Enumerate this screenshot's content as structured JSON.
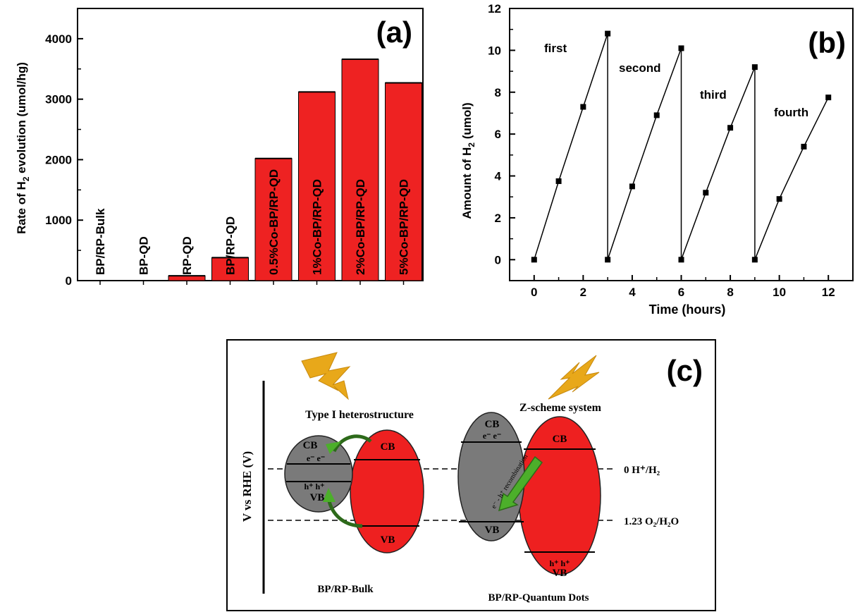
{
  "panel_a": {
    "panel_label": "(a)",
    "chart_data": {
      "type": "bar",
      "categories": [
        "BP/RP-Bulk",
        "BP-QD",
        "RP-QD",
        "BP/RP-QD",
        "0.5%Co-BP/RP-QD",
        "1%Co-BP/RP-QD",
        "2%Co-BP/RP-QD",
        "5%Co-BP/RP-QD"
      ],
      "values": [
        0,
        0,
        80,
        380,
        2020,
        3120,
        3660,
        3270
      ],
      "ylabel_prefix": "Rate of H",
      "ylabel_sub": "2",
      "ylabel_suffix": " evolution (umol/hg)",
      "ylim": [
        0,
        4500
      ],
      "yticks": [
        "0",
        "1000",
        "2000",
        "3000",
        "4000"
      ],
      "bar_color": "#ee2222"
    }
  },
  "panel_b": {
    "panel_label": "(b)",
    "chart_data": {
      "type": "line",
      "x": [
        0,
        1,
        2,
        3,
        3,
        4,
        5,
        6,
        6,
        7,
        8,
        9,
        9,
        10,
        11,
        12
      ],
      "y": [
        0,
        3.75,
        7.3,
        10.8,
        0,
        3.5,
        6.9,
        10.1,
        0,
        3.2,
        6.3,
        9.2,
        0,
        2.9,
        5.4,
        7.75
      ],
      "xlabel": "Time (hours)",
      "ylabel_prefix": "Amount of H",
      "ylabel_sub": "2",
      "ylabel_suffix": " (umol)",
      "xlim": [
        -1,
        13
      ],
      "ylim": [
        -1,
        12
      ],
      "xticks": [
        "0",
        "2",
        "4",
        "6",
        "8",
        "10",
        "12"
      ],
      "yticks": [
        "0",
        "2",
        "4",
        "6",
        "8",
        "10",
        "12"
      ],
      "annotations": [
        "first",
        "second",
        "third",
        "fourth"
      ]
    }
  },
  "panel_c": {
    "panel_label": "(c)",
    "axis_label": "V vs RHE (V)",
    "left_title": "Type I heterostructure",
    "right_title": "Z-scheme system",
    "left_caption": "BP/RP-Bulk",
    "right_caption": "BP/RP-Quantum Dots",
    "level_h2": "0 H⁺/H₂",
    "level_o2": "1.23 O₂/H₂O",
    "cb": "CB",
    "vb": "VB",
    "electrons": "e⁻  e⁻",
    "holes": "h⁺  h⁺",
    "arrow_text": "e⁻ - h⁺ recombination",
    "colors": {
      "gray": "#7a7a7a",
      "red": "#ee2020",
      "green": "#4caf2a",
      "lightning": "#e8a81a"
    }
  }
}
